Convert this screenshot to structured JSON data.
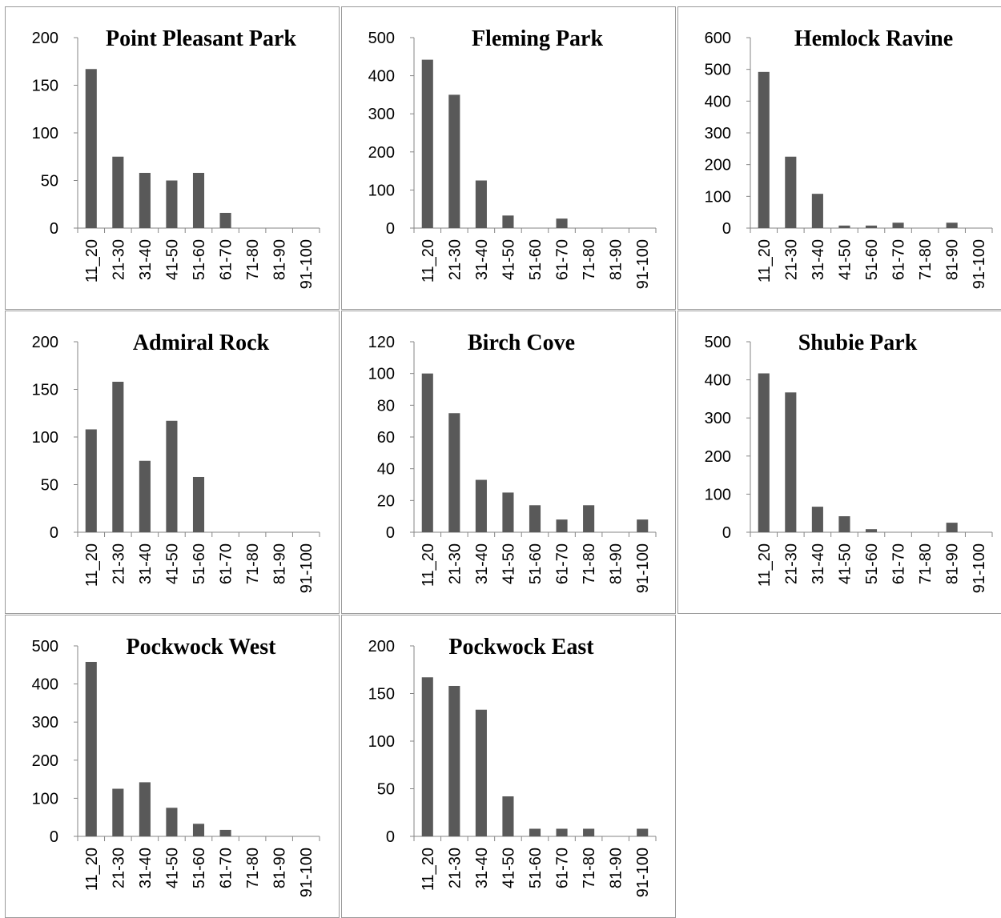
{
  "chart_data": [
    {
      "type": "bar",
      "title": "Point Pleasant Park",
      "categories": [
        "11_20",
        "21-30",
        "31-40",
        "41-50",
        "51-60",
        "61-70",
        "71-80",
        "81-90",
        "91-100"
      ],
      "values": [
        167,
        75,
        58,
        50,
        58,
        16,
        0,
        0,
        0
      ],
      "ylim": [
        0,
        200
      ],
      "yticks": [
        0,
        50,
        100,
        150,
        200
      ],
      "color": "#595959"
    },
    {
      "type": "bar",
      "title": "Fleming Park",
      "categories": [
        "11_20",
        "21-30",
        "31-40",
        "41-50",
        "51-60",
        "61-70",
        "71-80",
        "81-90",
        "91-100"
      ],
      "values": [
        442,
        350,
        125,
        33,
        0,
        25,
        0,
        0,
        0
      ],
      "ylim": [
        0,
        500
      ],
      "yticks": [
        0,
        100,
        200,
        300,
        400,
        500
      ],
      "color": "#595959"
    },
    {
      "type": "bar",
      "title": "Hemlock Ravine",
      "categories": [
        "11_20",
        "21-30",
        "31-40",
        "41-50",
        "51-60",
        "61-70",
        "71-80",
        "81-90",
        "91-100"
      ],
      "values": [
        492,
        225,
        108,
        8,
        8,
        17,
        0,
        17,
        0
      ],
      "ylim": [
        0,
        600
      ],
      "yticks": [
        0,
        100,
        200,
        300,
        400,
        500,
        600
      ],
      "color": "#595959"
    },
    {
      "type": "bar",
      "title": "Admiral Rock",
      "categories": [
        "11_20",
        "21-30",
        "31-40",
        "41-50",
        "51-60",
        "61-70",
        "71-80",
        "81-90",
        "91-100"
      ],
      "values": [
        108,
        158,
        75,
        117,
        58,
        0,
        0,
        0,
        0
      ],
      "ylim": [
        0,
        200
      ],
      "yticks": [
        0,
        50,
        100,
        150,
        200
      ],
      "color": "#595959"
    },
    {
      "type": "bar",
      "title": "Birch Cove",
      "categories": [
        "11_20",
        "21-30",
        "31-40",
        "41-50",
        "51-60",
        "61-70",
        "71-80",
        "81-90",
        "91-100"
      ],
      "values": [
        100,
        75,
        33,
        25,
        17,
        8,
        17,
        0,
        8
      ],
      "ylim": [
        0,
        120
      ],
      "yticks": [
        0,
        20,
        40,
        60,
        80,
        100,
        120
      ],
      "color": "#595959"
    },
    {
      "type": "bar",
      "title": "Shubie Park",
      "categories": [
        "11_20",
        "21-30",
        "31-40",
        "41-50",
        "51-60",
        "61-70",
        "71-80",
        "81-90",
        "91-100"
      ],
      "values": [
        417,
        367,
        67,
        42,
        8,
        0,
        0,
        25,
        0
      ],
      "ylim": [
        0,
        500
      ],
      "yticks": [
        0,
        100,
        200,
        300,
        400,
        500
      ],
      "color": "#595959"
    },
    {
      "type": "bar",
      "title": "Pockwock West",
      "categories": [
        "11_20",
        "21-30",
        "31-40",
        "41-50",
        "51-60",
        "61-70",
        "71-80",
        "81-90",
        "91-100"
      ],
      "values": [
        458,
        125,
        142,
        75,
        33,
        17,
        0,
        0,
        0
      ],
      "ylim": [
        0,
        500
      ],
      "yticks": [
        0,
        100,
        200,
        300,
        400,
        500
      ],
      "color": "#595959"
    },
    {
      "type": "bar",
      "title": "Pockwock East",
      "categories": [
        "11_20",
        "21-30",
        "31-40",
        "41-50",
        "51-60",
        "61-70",
        "71-80",
        "81-90",
        "91-100"
      ],
      "values": [
        167,
        158,
        133,
        42,
        8,
        8,
        8,
        0,
        8
      ],
      "ylim": [
        0,
        200
      ],
      "yticks": [
        0,
        50,
        100,
        150,
        200
      ],
      "color": "#595959"
    }
  ]
}
